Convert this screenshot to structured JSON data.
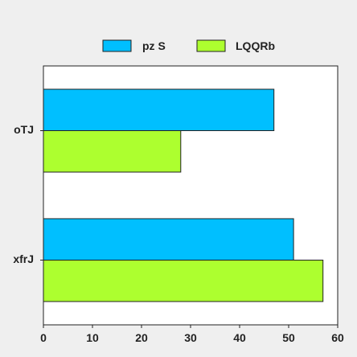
{
  "chart_data": {
    "type": "bar",
    "orientation": "horizontal",
    "title": "",
    "xlabel": "",
    "ylabel": "",
    "categories": [
      "oTJ",
      "xfrJ"
    ],
    "series": [
      {
        "name": "pz S",
        "values": [
          47,
          51
        ],
        "color": "#00bfff"
      },
      {
        "name": "LQQRb",
        "values": [
          28,
          57
        ],
        "color": "#adff2f"
      }
    ],
    "xlim": [
      0,
      60
    ],
    "xticks": [
      0,
      10,
      20,
      30,
      40,
      50,
      60
    ],
    "grid": false,
    "legend_position": "top"
  }
}
